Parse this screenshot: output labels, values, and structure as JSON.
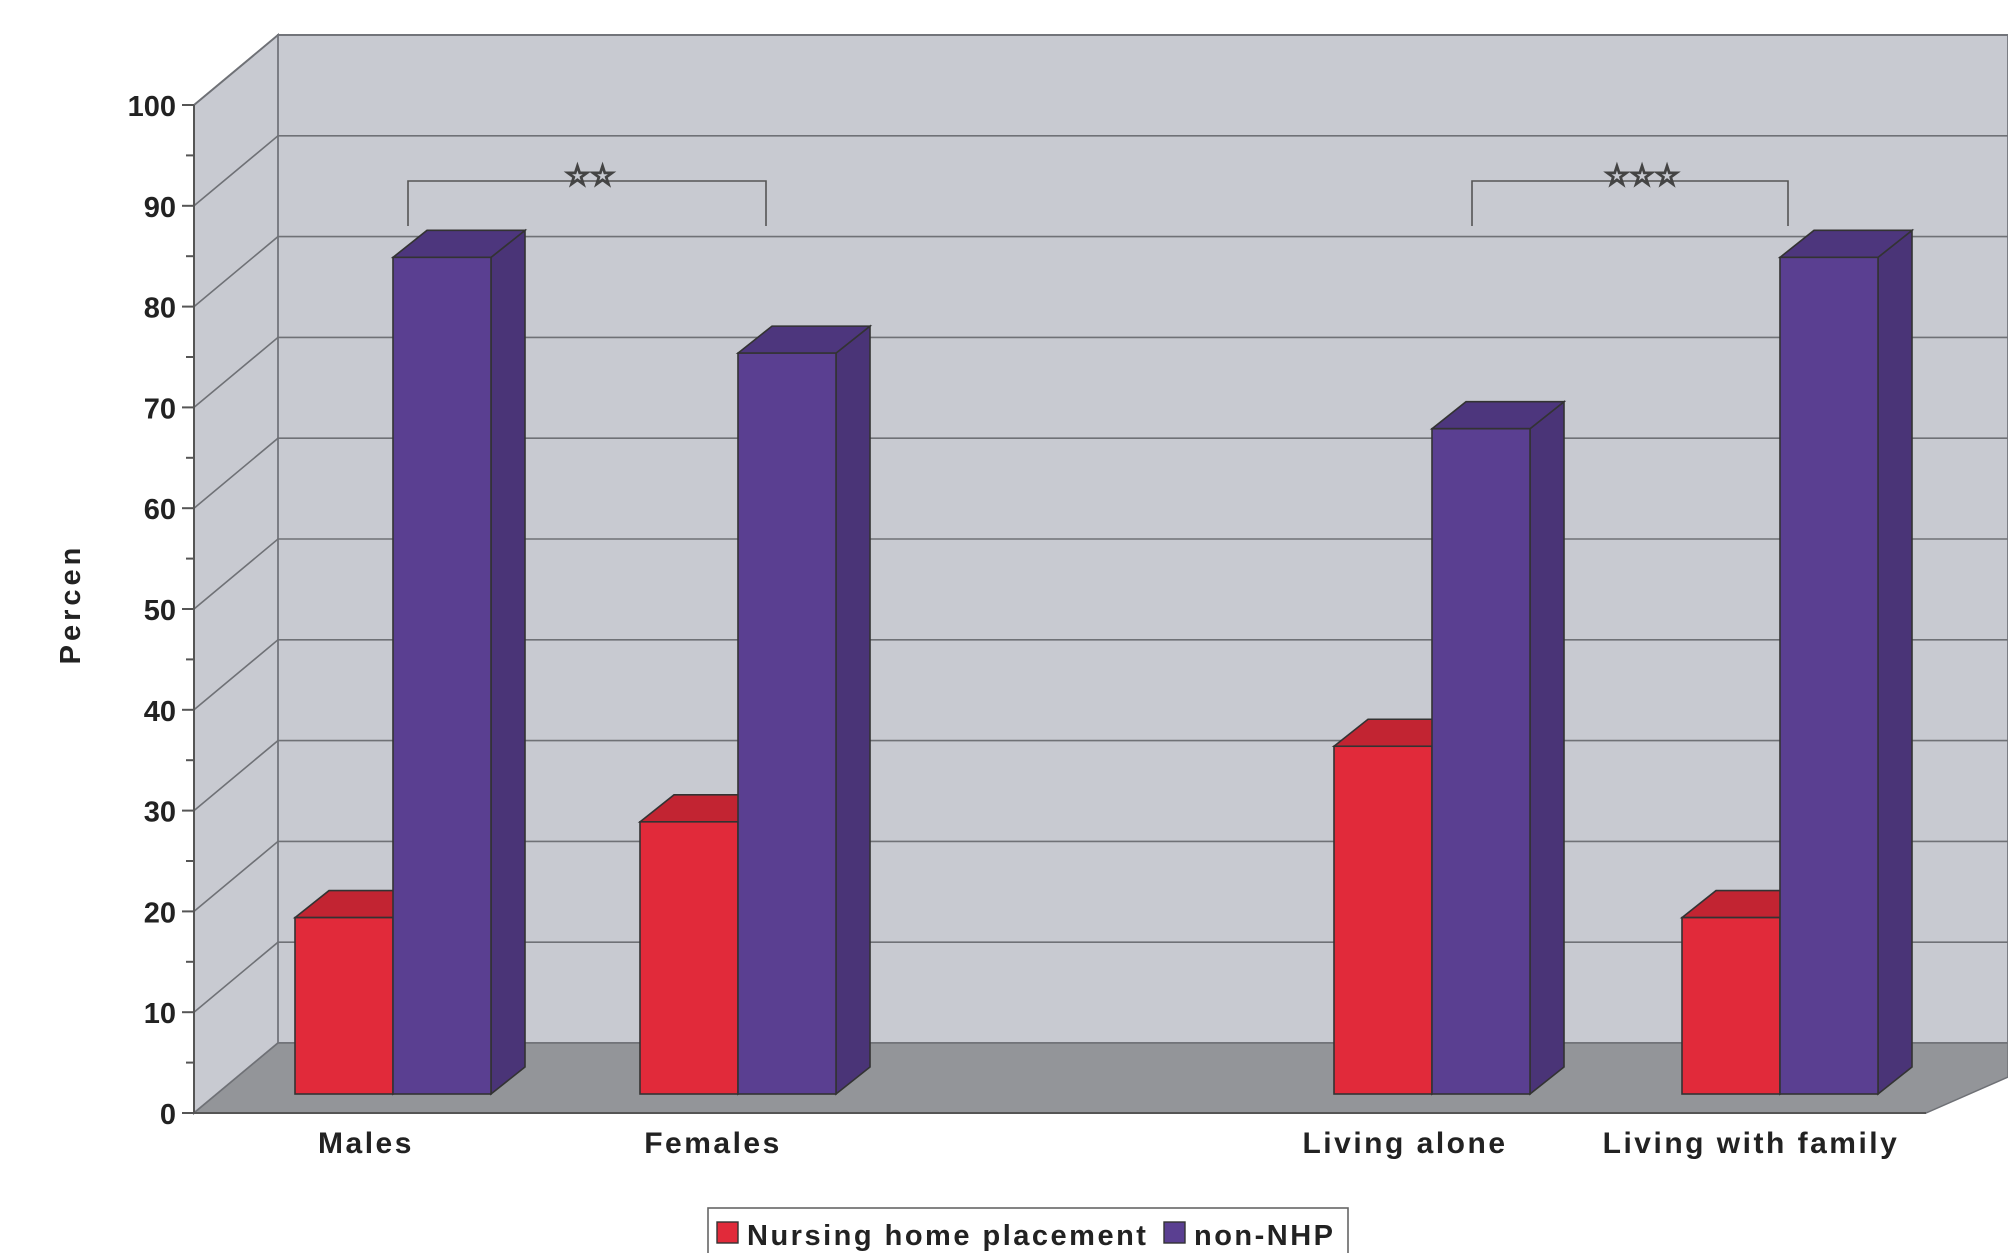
{
  "chart_data": {
    "type": "bar",
    "title": "",
    "xlabel": "",
    "ylabel": "Percen",
    "ylim": [
      0,
      100
    ],
    "yticks": [
      0,
      10,
      20,
      30,
      40,
      50,
      60,
      70,
      80,
      90,
      100
    ],
    "grid": true,
    "style": "3d",
    "legend_position": "bottom",
    "categories": [
      "Males",
      "Females",
      "Living alone",
      "Living with family"
    ],
    "series": [
      {
        "name": "Nursing home placement",
        "color": "#e12a3a",
        "values": [
          17.5,
          27,
          34.5,
          17.5
        ]
      },
      {
        "name": "non-NHP",
        "color": "#5a3f91",
        "values": [
          83,
          73.5,
          66,
          83
        ]
      }
    ],
    "annotations": [
      {
        "type": "significance",
        "label": "☆☆",
        "between": [
          "Males",
          "Females"
        ]
      },
      {
        "type": "significance",
        "label": "☆☆☆",
        "between": [
          "Living alone",
          "Living with family"
        ]
      }
    ]
  }
}
